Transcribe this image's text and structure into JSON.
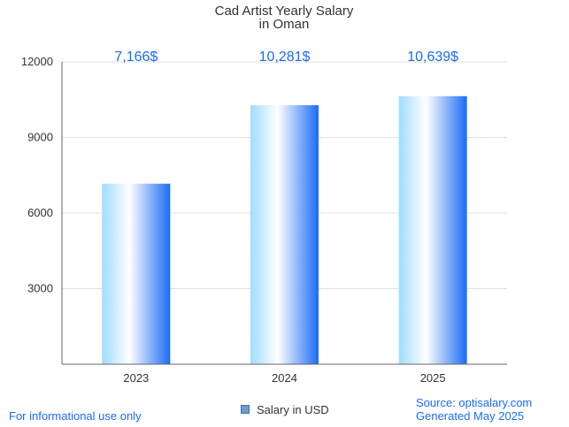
{
  "chart_data": {
    "type": "bar",
    "title": [
      "Cad Artist Yearly Salary",
      "in Oman"
    ],
    "categories": [
      "2023",
      "2024",
      "2025"
    ],
    "series": [
      {
        "name": "Salary in USD",
        "values": [
          7166,
          10281,
          10639
        ]
      }
    ],
    "data_labels": [
      "7,166$",
      "10,281$",
      "10,639$"
    ],
    "y_ticks": [
      3000,
      6000,
      9000,
      12000
    ],
    "ylim": [
      0,
      12000
    ],
    "grid": true,
    "legend": "bottom-center",
    "colors": {
      "bar_dark": "#1a6cf5",
      "bar_light": "#a0dcff",
      "data_label": "#1a6cf5",
      "grid": "#e0e0e0",
      "axis": "#666666",
      "legend_swatch": "#6b9bd1"
    }
  },
  "footer": {
    "note": "For informational use only",
    "source": "Source: optisalary.com",
    "generated": "Generated May 2025",
    "color": "#1a6cf5"
  }
}
